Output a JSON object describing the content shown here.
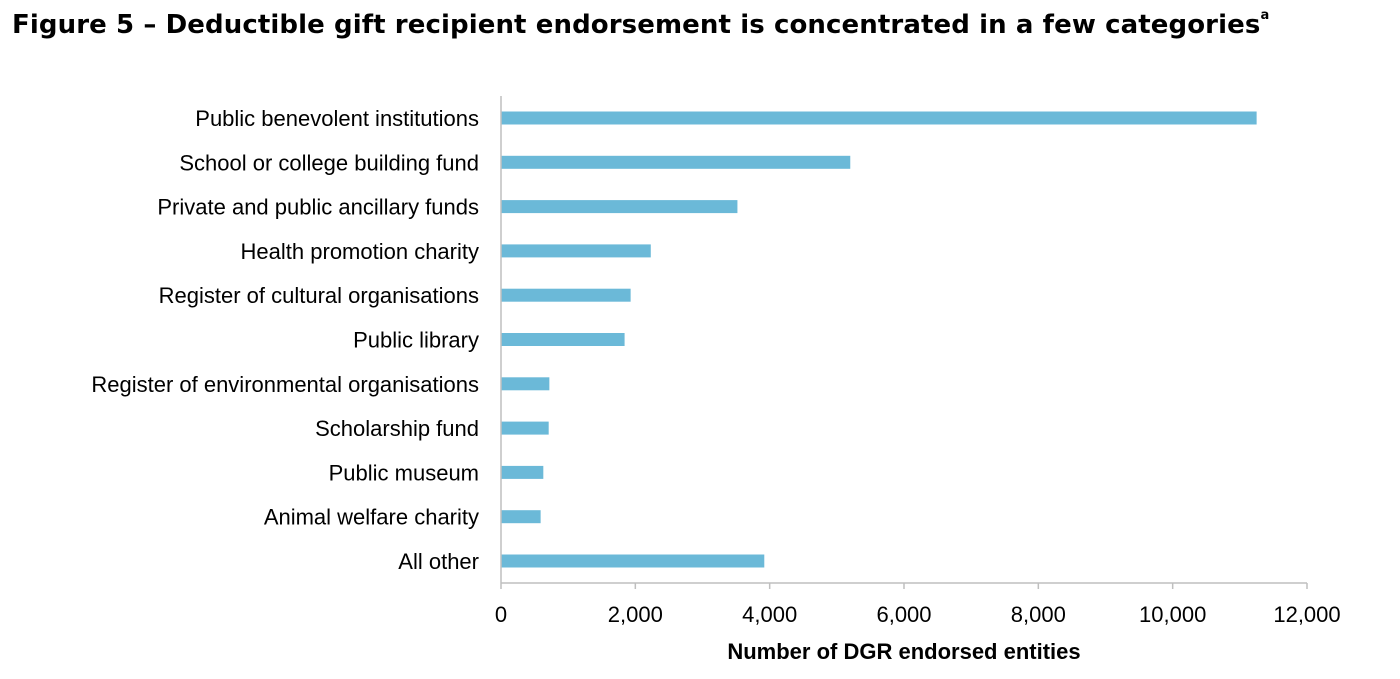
{
  "figure": {
    "title": "Figure 5 – Deductible gift recipient endorsement is concentrated in a few categories",
    "title_superscript": "a"
  },
  "chart_data": {
    "type": "bar",
    "orientation": "horizontal",
    "categories": [
      "Public benevolent institutions",
      "School or college building fund",
      "Private and public ancillary funds",
      "Health promotion charity",
      "Register of cultural organisations",
      "Public library",
      "Register of environmental organisations",
      "Scholarship fund",
      "Public museum",
      "Animal welfare charity",
      "All other"
    ],
    "values": [
      11250,
      5200,
      3520,
      2230,
      1930,
      1840,
      720,
      710,
      630,
      590,
      3920
    ],
    "xlabel": "Number of DGR endorsed entities",
    "ylabel": "",
    "xlim": [
      0,
      12000
    ],
    "xticks": [
      0,
      2000,
      4000,
      6000,
      8000,
      10000,
      12000
    ],
    "xtick_labels": [
      "0",
      "2,000",
      "4,000",
      "6,000",
      "8,000",
      "10,000",
      "12,000"
    ],
    "grid": false,
    "legend": "none",
    "bar_color": "#6BB9D8",
    "axis_color": "#BFBFBF"
  }
}
